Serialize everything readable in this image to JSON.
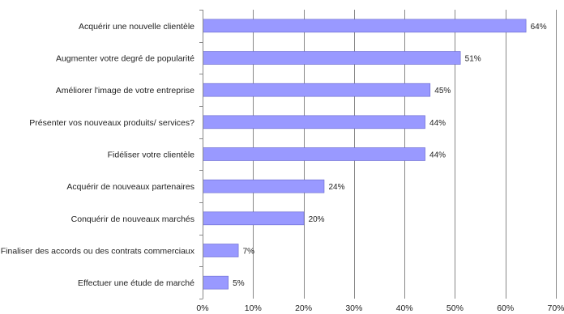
{
  "chart_data": {
    "type": "bar",
    "orientation": "horizontal",
    "title": "",
    "xlabel": "",
    "ylabel": "",
    "categories": [
      "Acquérir une nouvelle clientèle",
      "Augmenter votre degré de popularité",
      "Améliorer l'image de votre entreprise",
      "Présenter vos nouveaux produits/ services?",
      "Fidéliser votre clientèle",
      "Acquérir de nouveaux partenaires",
      "Conquérir de nouveaux marchés",
      "Finaliser des accords ou des contrats commerciaux",
      "Effectuer une étude de marché"
    ],
    "values": [
      64,
      51,
      45,
      44,
      44,
      24,
      20,
      7,
      5
    ],
    "value_labels": [
      "64%",
      "51%",
      "45%",
      "44%",
      "44%",
      "24%",
      "20%",
      "7%",
      "5%"
    ],
    "xlim": [
      0,
      70
    ],
    "xticks": [
      0,
      10,
      20,
      30,
      40,
      50,
      60,
      70
    ],
    "xtick_labels": [
      "0%",
      "10%",
      "20%",
      "30%",
      "40%",
      "50%",
      "60%",
      "70%"
    ],
    "grid": "vertical",
    "legend": "none",
    "bar_color": "#9999ff",
    "bar_edge_color": "#6666cc",
    "grid_color": "#888888"
  }
}
